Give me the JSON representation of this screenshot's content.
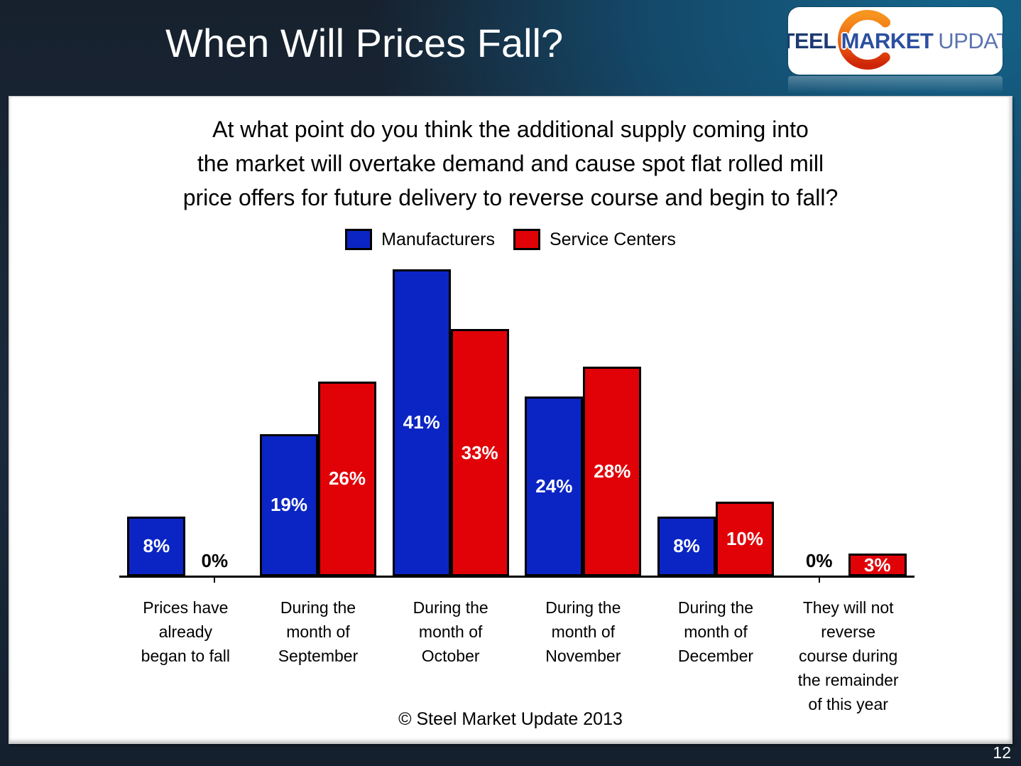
{
  "slide": {
    "title": "When Will Prices Fall?",
    "page_number": "12",
    "footer": "© Steel Market Update 2013"
  },
  "logo": {
    "word1": "STEEL",
    "word2": "MARKET",
    "word3": "UPDATE",
    "swoosh_colors": {
      "top": "#F79520",
      "bottom": "#CE2408"
    }
  },
  "question": {
    "lines": [
      "At what point do you think the additional supply coming into",
      "the market will overtake demand and cause spot flat rolled mill",
      "price offers for future delivery to reverse course and begin to fall?"
    ]
  },
  "colors": {
    "manufacturers": "#0B25C4",
    "service_centers": "#E10208",
    "bar_border": "#000000",
    "value_label": "#ffffff",
    "zero_label": "#000000"
  },
  "chart_data": {
    "type": "bar",
    "title": "",
    "xlabel": "",
    "ylabel": "",
    "value_suffix": "%",
    "ylim": [
      0,
      45
    ],
    "grid": false,
    "legend_position": "top",
    "categories": [
      "Prices have already began to fall",
      "During the month of September",
      "During the month of October",
      "During the month of November",
      "During the month of December",
      "They will not reverse course during the remainder of this year"
    ],
    "category_lines": [
      [
        "Prices have",
        "already",
        "began to fall"
      ],
      [
        "During the",
        "month of",
        "September"
      ],
      [
        "During the",
        "month of",
        "October"
      ],
      [
        "During the",
        "month of",
        "November"
      ],
      [
        "During the",
        "month of",
        "December"
      ],
      [
        "They will not",
        "reverse",
        "course during",
        "the remainder",
        "of this year"
      ]
    ],
    "series": [
      {
        "name": "Manufacturers",
        "color": "#0B25C4",
        "values": [
          8,
          19,
          41,
          24,
          8,
          0
        ]
      },
      {
        "name": "Service Centers",
        "color": "#E10208",
        "values": [
          0,
          26,
          33,
          28,
          10,
          3
        ]
      }
    ]
  }
}
